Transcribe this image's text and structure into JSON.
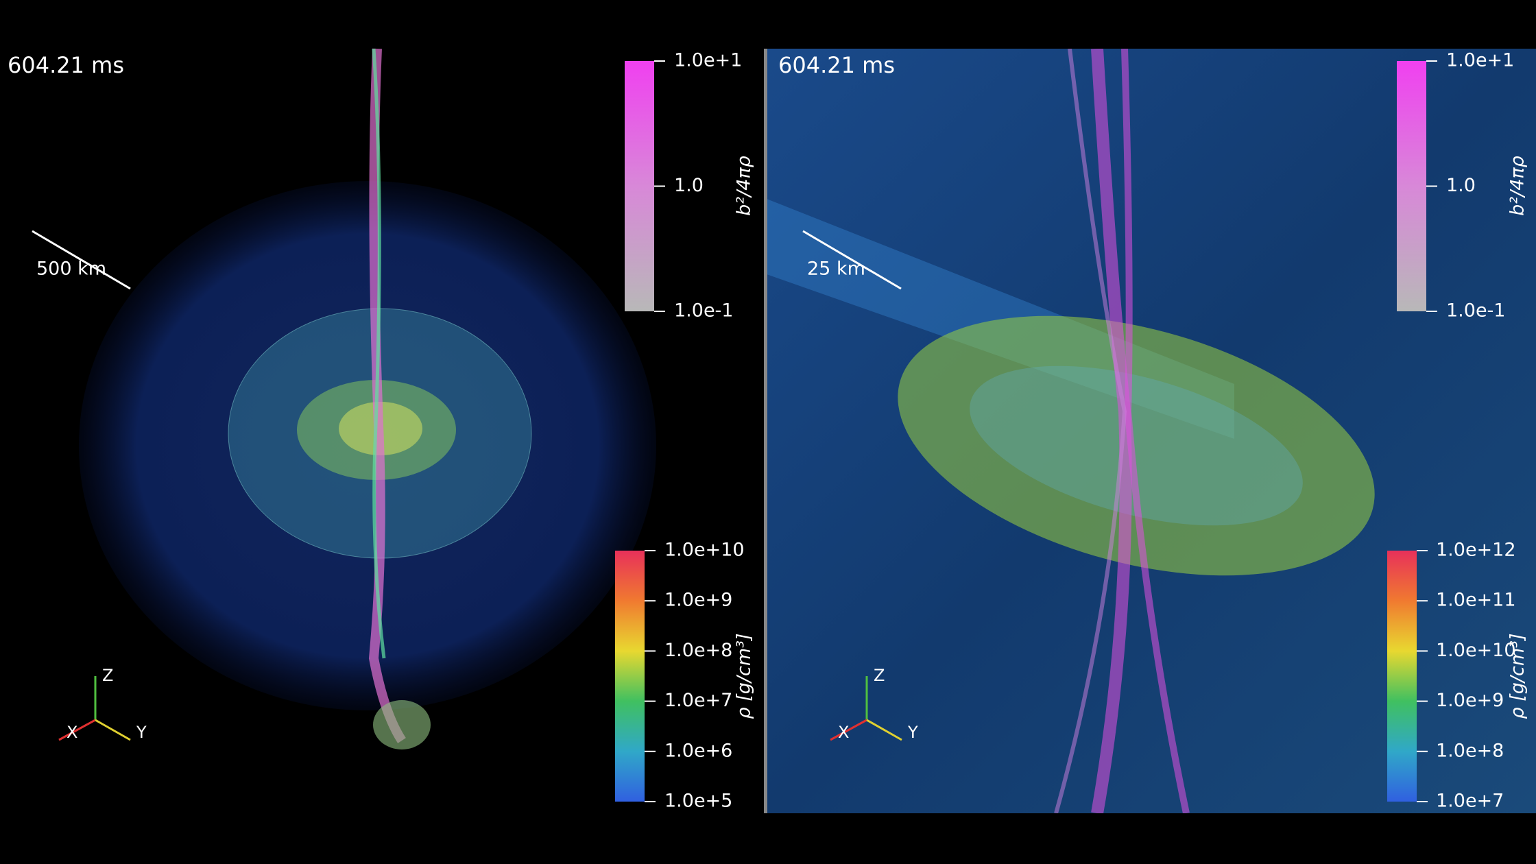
{
  "panels": [
    {
      "time": "604.21 ms",
      "scale_bar": "500 km",
      "magnetization_bar": {
        "label": "b²/4πρ",
        "ticks": [
          "1.0e+1",
          "1.0",
          "1.0e-1"
        ]
      },
      "density_bar": {
        "label": "ρ [g/cm³]",
        "ticks": [
          "1.0e+10",
          "1.0e+9",
          "1.0e+8",
          "1.0e+7",
          "1.0e+6",
          "1.0e+5"
        ]
      },
      "axes": {
        "z": "Z",
        "x": "X",
        "y": "Y"
      }
    },
    {
      "time": "604.21 ms",
      "scale_bar": "25 km",
      "magnetization_bar": {
        "label": "b²/4πρ",
        "ticks": [
          "1.0e+1",
          "1.0",
          "1.0e-1"
        ]
      },
      "density_bar": {
        "label": "ρ [g/cm³]",
        "ticks": [
          "1.0e+12",
          "1.0e+11",
          "1.0e+10",
          "1.0e+9",
          "1.0e+8",
          "1.0e+7"
        ]
      },
      "axes": {
        "z": "Z",
        "x": "X",
        "y": "Y"
      }
    }
  ]
}
